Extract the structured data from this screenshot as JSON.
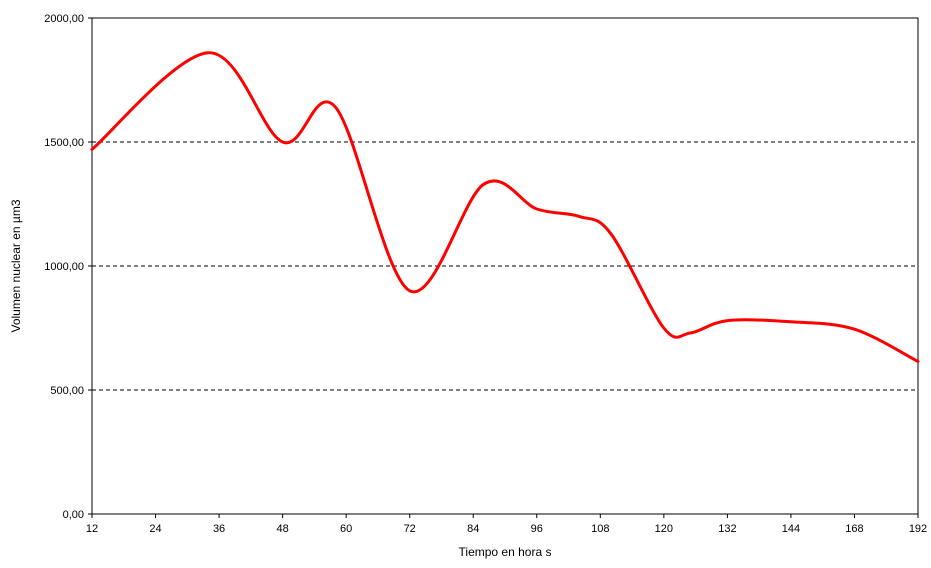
{
  "chart_data": {
    "type": "line",
    "title": "",
    "xlabel": "Tiempo en hora s",
    "ylabel": "Volumen nuclear en µm3",
    "x_categories": [
      "12",
      "24",
      "36",
      "48",
      "60",
      "72",
      "84",
      "96",
      "108",
      "120",
      "132",
      "144",
      "168",
      "192"
    ],
    "y_ticks": [
      "0,00",
      "500,00",
      "1000,00",
      "1500,00",
      "2000,00"
    ],
    "ylim": [
      0,
      2000
    ],
    "grid": "dashed horizontal at 500, 1000, 1500",
    "legend": "none",
    "series": [
      {
        "x": [
          12,
          34,
          48,
          58,
          72,
          86,
          96,
          104,
          110,
          120,
          125,
          132,
          144,
          168,
          192
        ],
        "values": [
          1470,
          1860,
          1500,
          1640,
          900,
          1330,
          1230,
          1200,
          1130,
          750,
          730,
          780,
          775,
          745,
          615
        ],
        "color": "#ff0000"
      }
    ]
  }
}
